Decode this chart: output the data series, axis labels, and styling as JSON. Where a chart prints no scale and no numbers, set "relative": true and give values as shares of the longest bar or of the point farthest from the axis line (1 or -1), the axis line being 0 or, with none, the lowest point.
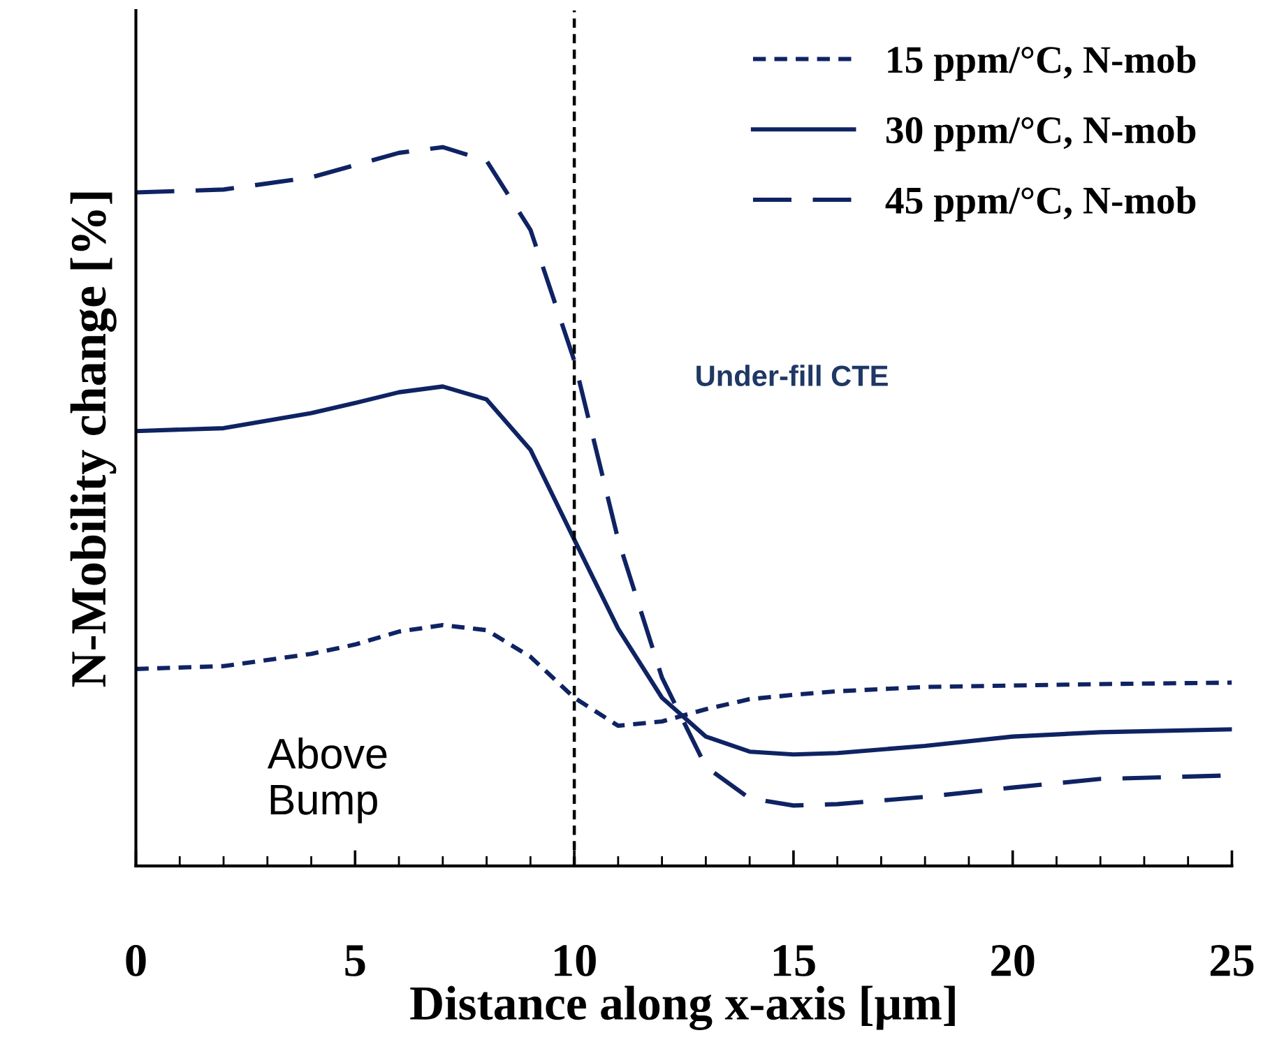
{
  "chart_data": {
    "type": "line",
    "relative": true,
    "xlabel": "Distance along x-axis [μm]",
    "ylabel": "N-Mobility change [%]",
    "xlim": [
      0,
      25
    ],
    "xticks": [
      0,
      5,
      10,
      15,
      20,
      25
    ],
    "legend": "top right",
    "grid": false,
    "marker": "none",
    "ref_lines": [
      {
        "axis": "x",
        "value": 10,
        "color": "#000000",
        "line_style": "dotted"
      }
    ],
    "annotations": [
      "Under-fill CTE",
      "Above\nBump"
    ],
    "series": [
      {
        "name": "15 ppm/°C, N-mob",
        "color": "#0f2363",
        "line_style": "dotted",
        "x": [
          0,
          2,
          4,
          5,
          6,
          7,
          8,
          9,
          10,
          11,
          12,
          13,
          14,
          15,
          16,
          18,
          20,
          22,
          25
        ],
        "values": [
          0.274,
          0.278,
          0.295,
          0.308,
          0.326,
          0.335,
          0.328,
          0.291,
          0.234,
          0.195,
          0.201,
          0.218,
          0.232,
          0.238,
          0.243,
          0.249,
          0.251,
          0.253,
          0.255
        ]
      },
      {
        "name": "30 ppm/°C, N-mob",
        "color": "#0f2363",
        "line_style": "solid",
        "x": [
          0,
          2,
          4,
          5,
          6,
          7,
          8,
          9,
          10,
          11,
          12,
          13,
          14,
          15,
          16,
          18,
          20,
          22,
          25
        ],
        "values": [
          0.605,
          0.609,
          0.63,
          0.644,
          0.659,
          0.667,
          0.649,
          0.579,
          0.454,
          0.33,
          0.234,
          0.18,
          0.159,
          0.155,
          0.157,
          0.167,
          0.18,
          0.186,
          0.19
        ]
      },
      {
        "name": "45 ppm/°C, N-mob",
        "color": "#0f2363",
        "line_style": "dashed",
        "x": [
          0,
          2,
          4,
          5,
          6,
          7,
          8,
          9,
          10,
          11,
          12,
          13,
          14,
          15,
          16,
          18,
          20,
          22,
          25
        ],
        "values": [
          0.937,
          0.941,
          0.958,
          0.975,
          0.992,
          1.0,
          0.981,
          0.885,
          0.703,
          0.454,
          0.262,
          0.138,
          0.094,
          0.084,
          0.086,
          0.096,
          0.109,
          0.121,
          0.126
        ]
      }
    ]
  }
}
